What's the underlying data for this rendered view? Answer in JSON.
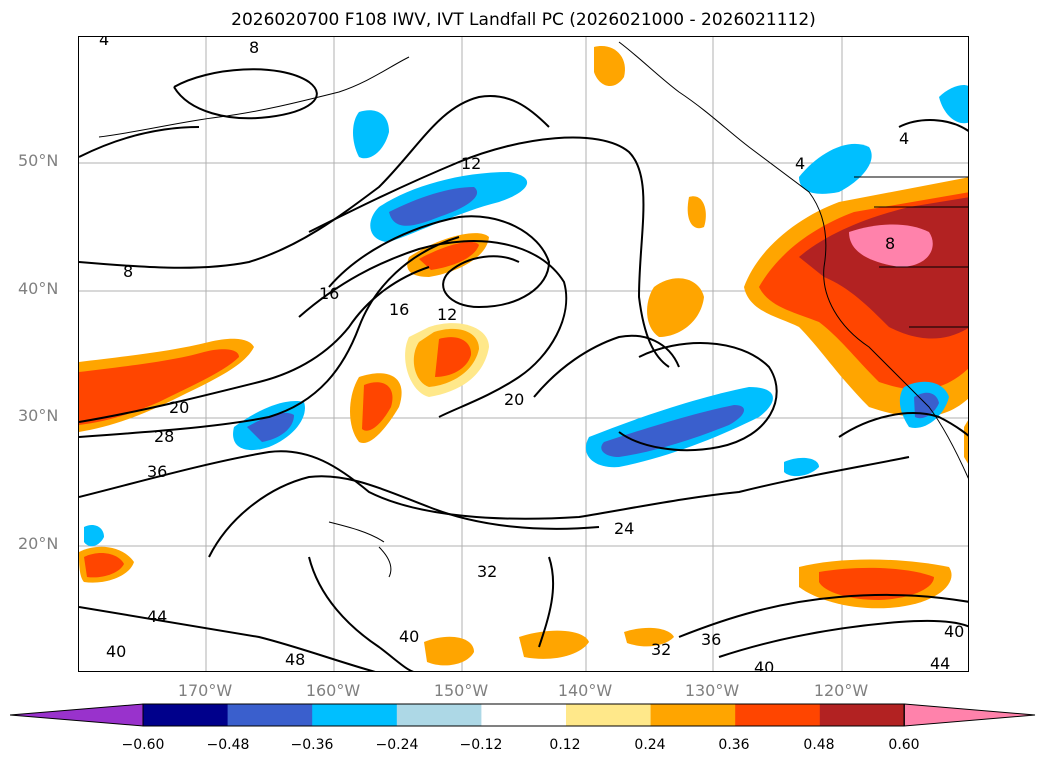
{
  "title": "2026020700 F108 IWV, IVT Landfall PC (2026021000 - 2026021112)",
  "latitude_labels": [
    "50°N",
    "40°N",
    "30°N",
    "20°N"
  ],
  "longitude_labels": [
    "170°W",
    "160°W",
    "150°W",
    "140°W",
    "130°W",
    "120°W"
  ],
  "colorbar": {
    "ticks": [
      "−0.60",
      "−0.48",
      "−0.36",
      "−0.24",
      "−0.12",
      "0.12",
      "0.24",
      "0.36",
      "0.48",
      "0.60"
    ],
    "colors": [
      "#9932cc",
      "#00008b",
      "#3a5fcd",
      "#00bfff",
      "#add8e6",
      "#ffffff",
      "#ffe88a",
      "#ffa500",
      "#ff4500",
      "#b22222",
      "#ff82ab"
    ]
  },
  "contour_labels": [
    "8",
    "8",
    "12",
    "12",
    "16",
    "16",
    "20",
    "20",
    "24",
    "28",
    "32",
    "32",
    "36",
    "36",
    "40",
    "40",
    "40",
    "40",
    "44",
    "44",
    "48",
    "4",
    "4",
    "4",
    "8"
  ]
}
